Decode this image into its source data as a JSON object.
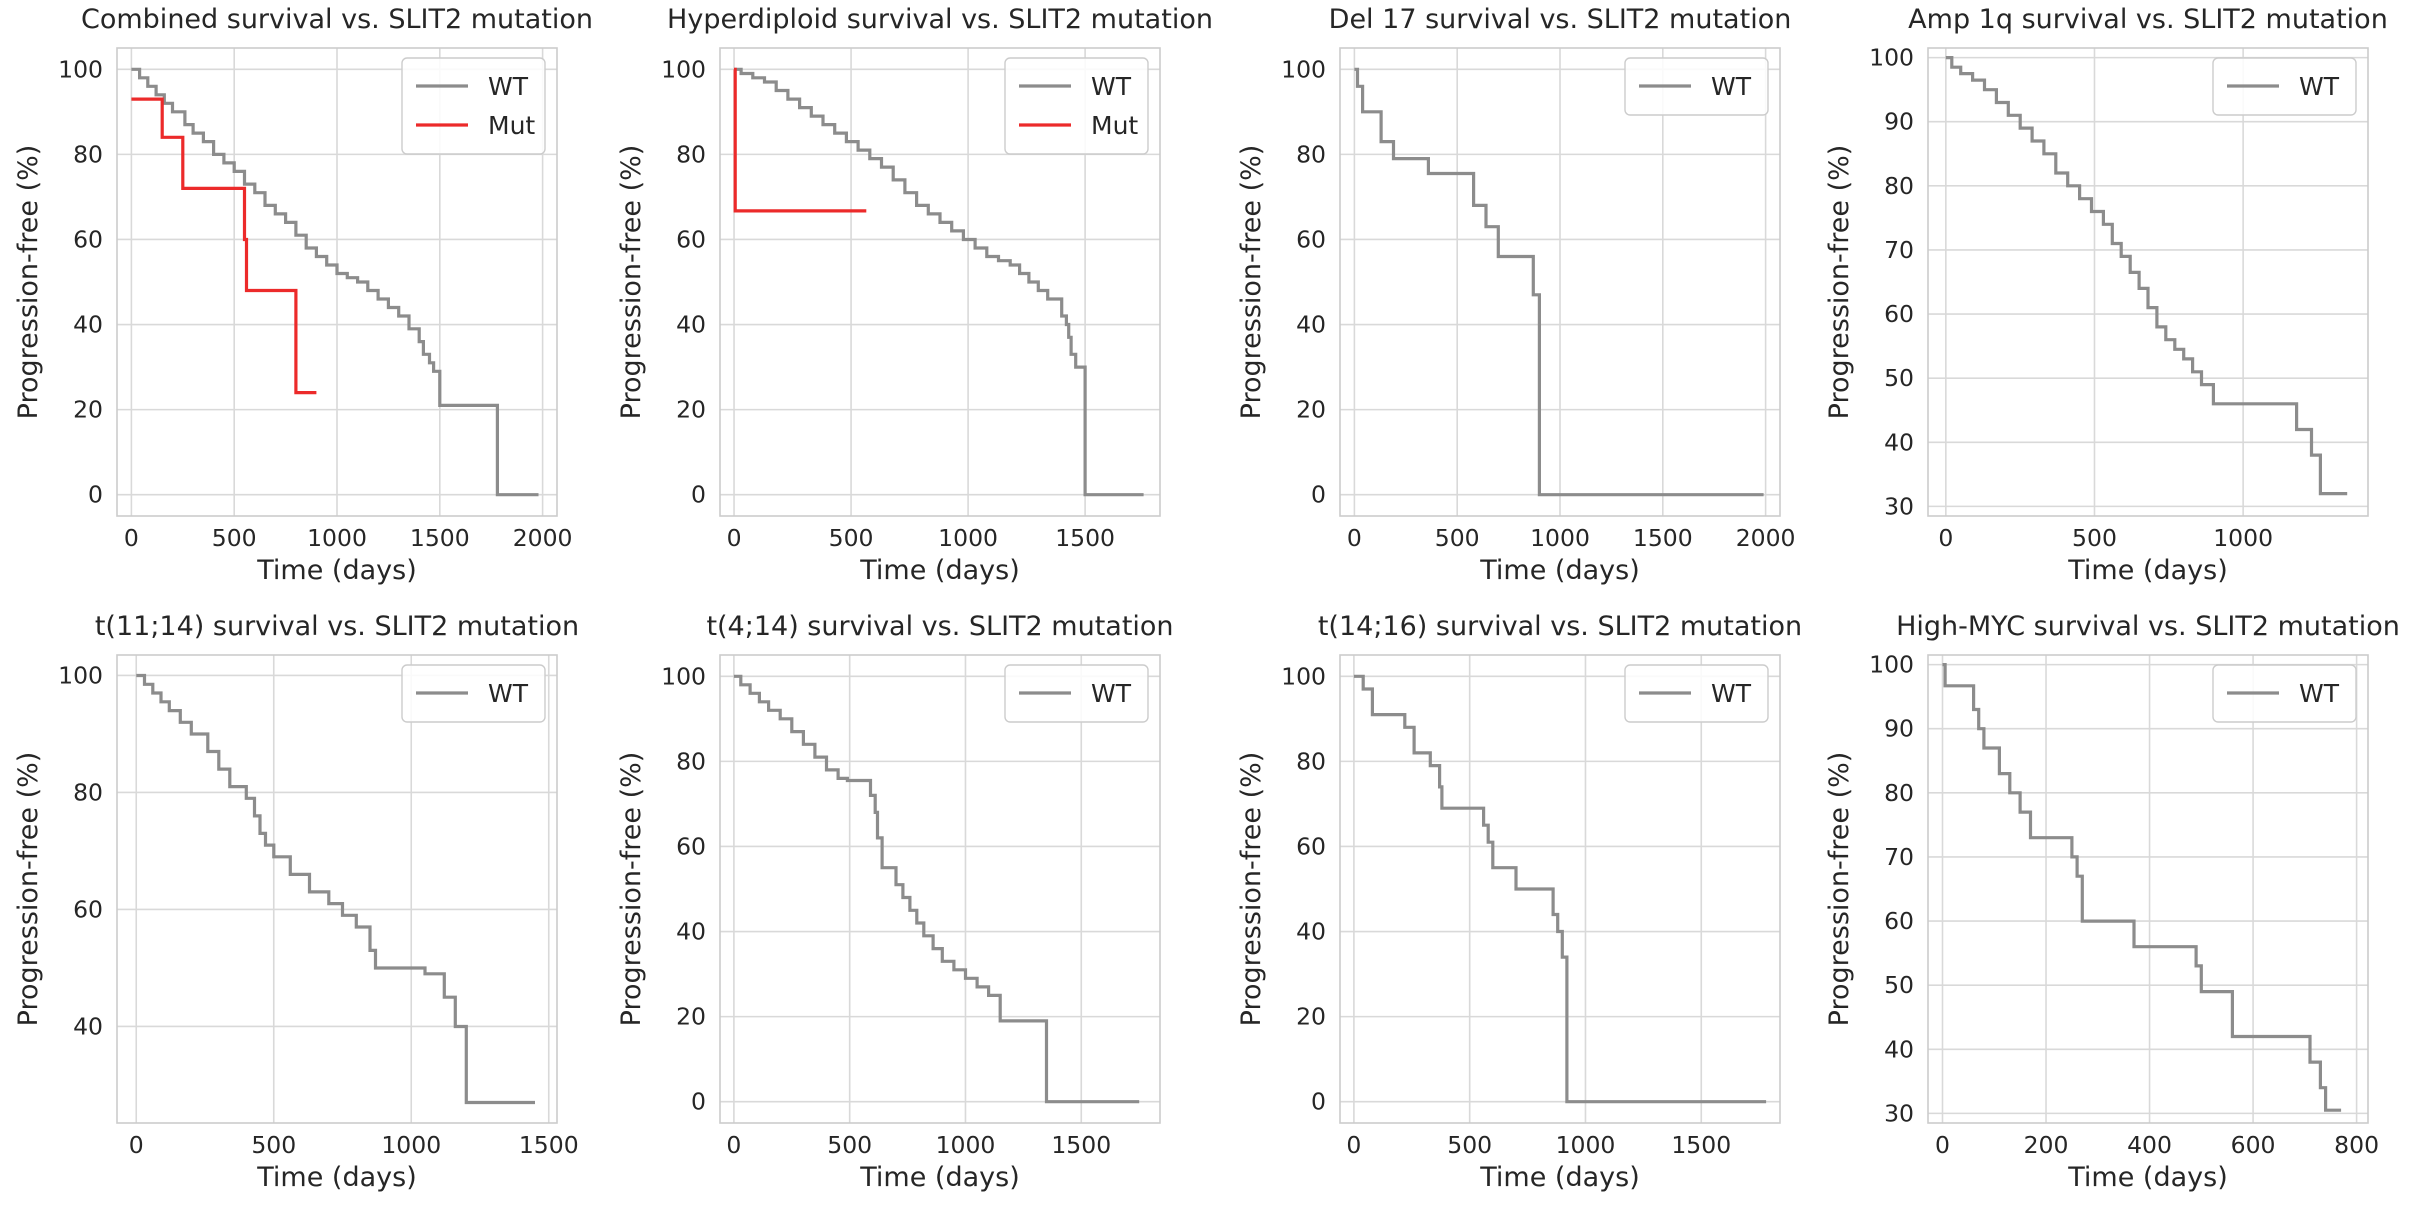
{
  "chart_data": [
    {
      "type": "line",
      "title": "Combined survival vs. SLIT2 mutation",
      "xlabel": "Time (days)",
      "ylabel": "Progression-free (%)",
      "xlim": [
        -70,
        2070
      ],
      "ylim": [
        -5,
        105
      ],
      "xticks": [
        0,
        500,
        1000,
        1500,
        2000
      ],
      "yticks": [
        0,
        20,
        40,
        60,
        80,
        100
      ],
      "grid": true,
      "legend_position": "top-right",
      "series": [
        {
          "name": "WT",
          "color": "#8c8c8c",
          "step": true,
          "x": [
            0,
            40,
            80,
            120,
            160,
            200,
            260,
            300,
            350,
            400,
            450,
            500,
            550,
            600,
            650,
            700,
            750,
            800,
            850,
            900,
            950,
            1000,
            1050,
            1100,
            1150,
            1200,
            1250,
            1300,
            1350,
            1400,
            1420,
            1450,
            1470,
            1500,
            1760,
            1780,
            1980
          ],
          "y": [
            100,
            98,
            96,
            94,
            92,
            90,
            87,
            85,
            83,
            80,
            78,
            76,
            73,
            71,
            68,
            66,
            64,
            61,
            58,
            56,
            54,
            52,
            51,
            50,
            48,
            46,
            44,
            42,
            39,
            36,
            33,
            31,
            29,
            21,
            21,
            0,
            0
          ]
        },
        {
          "name": "Mut",
          "color": "#ec2a2a",
          "step": true,
          "x": [
            0,
            150,
            250,
            550,
            560,
            800,
            900
          ],
          "y": [
            93,
            84,
            72,
            60,
            48,
            24,
            24
          ]
        }
      ]
    },
    {
      "type": "line",
      "title": "Hyperdiploid survival vs. SLIT2 mutation",
      "xlabel": "Time (days)",
      "ylabel": "Progression-free (%)",
      "xlim": [
        -60,
        1820
      ],
      "ylim": [
        -5,
        105
      ],
      "xticks": [
        0,
        500,
        1000,
        1500
      ],
      "yticks": [
        0,
        20,
        40,
        60,
        80,
        100
      ],
      "grid": true,
      "legend_position": "top-right",
      "series": [
        {
          "name": "WT",
          "color": "#8c8c8c",
          "step": true,
          "x": [
            0,
            30,
            80,
            130,
            180,
            230,
            280,
            330,
            380,
            430,
            480,
            530,
            580,
            630,
            680,
            730,
            780,
            830,
            880,
            930,
            980,
            1030,
            1080,
            1130,
            1180,
            1220,
            1260,
            1300,
            1340,
            1400,
            1420,
            1430,
            1440,
            1460,
            1500,
            1750
          ],
          "y": [
            100,
            99,
            98,
            97,
            95,
            93,
            91,
            89,
            87,
            85,
            83,
            81,
            79,
            77,
            74,
            71,
            68,
            66,
            64,
            62,
            60,
            58,
            56,
            55,
            54,
            52,
            50,
            48,
            46,
            42,
            40,
            37,
            33,
            30,
            0,
            0
          ]
        },
        {
          "name": "Mut",
          "color": "#ec2a2a",
          "step": true,
          "x": [
            0,
            5,
            565
          ],
          "y": [
            100,
            66.7,
            66.7
          ]
        }
      ]
    },
    {
      "type": "line",
      "title": "Del 17 survival vs. SLIT2 mutation",
      "xlabel": "Time (days)",
      "ylabel": "Progression-free (%)",
      "xlim": [
        -70,
        2070
      ],
      "ylim": [
        -5,
        105
      ],
      "xticks": [
        0,
        500,
        1000,
        1500,
        2000
      ],
      "yticks": [
        0,
        20,
        40,
        60,
        80,
        100
      ],
      "grid": true,
      "legend_position": "top-right",
      "series": [
        {
          "name": "WT",
          "color": "#8c8c8c",
          "step": true,
          "x": [
            0,
            15,
            40,
            130,
            190,
            360,
            580,
            640,
            700,
            870,
            900,
            1990
          ],
          "y": [
            100,
            96,
            90,
            83,
            79,
            75.5,
            68,
            63,
            56,
            47,
            0,
            0
          ]
        }
      ]
    },
    {
      "type": "line",
      "title": "Amp 1q survival vs. SLIT2 mutation",
      "xlabel": "Time (days)",
      "ylabel": "Progression-free (%)",
      "xlim": [
        -60,
        1420
      ],
      "ylim": [
        28.5,
        101.5
      ],
      "xticks": [
        0,
        500,
        1000
      ],
      "yticks": [
        30,
        40,
        50,
        60,
        70,
        80,
        90,
        100
      ],
      "grid": true,
      "legend_position": "top-right",
      "series": [
        {
          "name": "WT",
          "color": "#8c8c8c",
          "step": true,
          "x": [
            0,
            20,
            50,
            90,
            130,
            170,
            210,
            250,
            290,
            330,
            370,
            410,
            450,
            490,
            530,
            560,
            590,
            620,
            650,
            680,
            710,
            740,
            770,
            800,
            830,
            860,
            900,
            1000,
            1100,
            1180,
            1230,
            1260,
            1350
          ],
          "y": [
            100,
            98.5,
            97.5,
            96.5,
            95,
            93,
            91,
            89,
            87,
            85,
            82,
            80,
            78,
            76,
            74,
            71,
            69,
            66.5,
            64,
            61,
            58,
            56,
            54.5,
            53,
            51,
            49,
            46,
            46,
            46,
            42,
            38,
            32,
            32
          ]
        }
      ]
    },
    {
      "type": "line",
      "title": "t(11;14) survival vs. SLIT2 mutation",
      "xlabel": "Time (days)",
      "ylabel": "Progression-free (%)",
      "xlim": [
        -70,
        1530
      ],
      "ylim": [
        23.5,
        103.5
      ],
      "xticks": [
        0,
        500,
        1000,
        1500
      ],
      "yticks": [
        40,
        60,
        80,
        100
      ],
      "grid": true,
      "legend_position": "top-right",
      "series": [
        {
          "name": "WT",
          "color": "#8c8c8c",
          "step": true,
          "x": [
            0,
            30,
            60,
            90,
            120,
            160,
            200,
            260,
            300,
            340,
            400,
            430,
            450,
            470,
            500,
            560,
            630,
            700,
            750,
            800,
            850,
            870,
            1050,
            1120,
            1160,
            1200,
            1450
          ],
          "y": [
            100,
            98.5,
            97,
            95.5,
            94,
            92,
            90,
            87,
            84,
            81,
            79,
            76,
            73,
            71,
            69,
            66,
            63,
            61,
            59,
            57,
            53,
            50,
            49,
            45,
            40,
            27,
            27
          ]
        }
      ]
    },
    {
      "type": "line",
      "title": "t(4;14) survival vs. SLIT2 mutation",
      "xlabel": "Time (days)",
      "ylabel": "Progression-free (%)",
      "xlim": [
        -60,
        1840
      ],
      "ylim": [
        -5,
        105
      ],
      "xticks": [
        0,
        500,
        1000,
        1500
      ],
      "yticks": [
        0,
        20,
        40,
        60,
        80,
        100
      ],
      "grid": true,
      "legend_position": "top-right",
      "series": [
        {
          "name": "WT",
          "color": "#8c8c8c",
          "step": true,
          "x": [
            0,
            30,
            70,
            110,
            150,
            200,
            250,
            300,
            350,
            400,
            450,
            490,
            590,
            610,
            620,
            640,
            700,
            730,
            760,
            790,
            820,
            860,
            900,
            950,
            1000,
            1050,
            1100,
            1150,
            1340,
            1350,
            1750
          ],
          "y": [
            100,
            98,
            96,
            94,
            92,
            90,
            87,
            84,
            81,
            78,
            76,
            75.5,
            72,
            68,
            62,
            55,
            51,
            48,
            45,
            42,
            39,
            36,
            33,
            31,
            29,
            27,
            25,
            19,
            19,
            0,
            0
          ]
        }
      ]
    },
    {
      "type": "line",
      "title": "t(14;16) survival vs. SLIT2 mutation",
      "xlabel": "Time (days)",
      "ylabel": "Progression-free (%)",
      "xlim": [
        -60,
        1840
      ],
      "ylim": [
        -5,
        105
      ],
      "xticks": [
        0,
        500,
        1000,
        1500
      ],
      "yticks": [
        0,
        20,
        40,
        60,
        80,
        100
      ],
      "grid": true,
      "legend_position": "top-right",
      "series": [
        {
          "name": "WT",
          "color": "#8c8c8c",
          "step": true,
          "x": [
            0,
            40,
            80,
            220,
            260,
            330,
            370,
            380,
            560,
            580,
            600,
            700,
            860,
            880,
            900,
            920,
            1780
          ],
          "y": [
            100,
            97,
            91,
            88,
            82,
            79,
            74,
            69,
            65,
            61,
            55,
            50,
            44,
            40,
            34,
            0,
            0
          ]
        }
      ]
    },
    {
      "type": "line",
      "title": "High-MYC survival vs. SLIT2 mutation",
      "xlabel": "Time (days)",
      "ylabel": "Progression-free (%)",
      "xlim": [
        -28,
        822
      ],
      "ylim": [
        28.5,
        101.5
      ],
      "xticks": [
        0,
        200,
        400,
        600,
        800
      ],
      "yticks": [
        30,
        40,
        50,
        60,
        70,
        80,
        90,
        100
      ],
      "grid": true,
      "legend_position": "top-right",
      "series": [
        {
          "name": "WT",
          "color": "#8c8c8c",
          "step": true,
          "x": [
            0,
            5,
            60,
            70,
            80,
            110,
            130,
            150,
            170,
            250,
            260,
            270,
            370,
            490,
            500,
            560,
            710,
            730,
            740,
            770
          ],
          "y": [
            100,
            96.7,
            93,
            90,
            87,
            83,
            80,
            77,
            73,
            70,
            67,
            60,
            56,
            53,
            49,
            42,
            38,
            34,
            30.5,
            30.5
          ]
        }
      ]
    }
  ]
}
